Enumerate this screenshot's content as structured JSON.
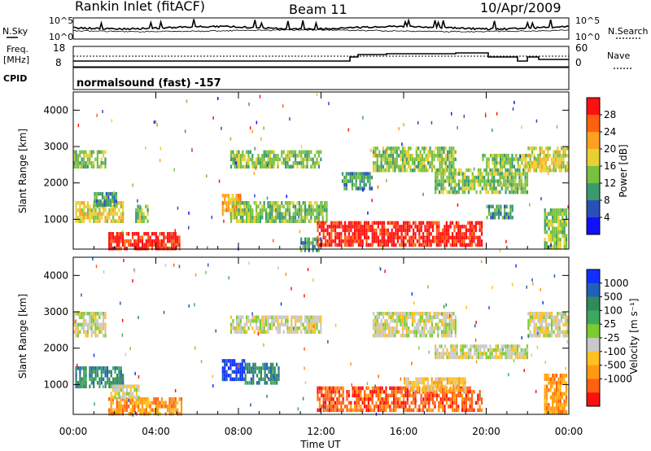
{
  "header": {
    "title": "Rankin Inlet (fitACF)",
    "beam": "Beam 11",
    "date": "10/Apr/2009"
  },
  "noise_panel": {
    "left_label": "N.Sky",
    "right_label": "N.Search",
    "left_ticks": [
      "10^5",
      "10^0"
    ],
    "right_ticks": [
      "10^5",
      "10^0"
    ]
  },
  "freq_panel": {
    "left_label_1": "Freq.",
    "left_label_2": "[MHz]",
    "right_label": "Nave",
    "left_ticks": [
      "18",
      "8"
    ],
    "right_ticks": [
      "60",
      "0"
    ]
  },
  "cpid_panel": {
    "label": "CPID",
    "text": "normalsound (fast) -157"
  },
  "chart_data": [
    {
      "type": "heatmap",
      "name": "power",
      "ylabel": "Slant Range [km]",
      "y_ticks": [
        "1000",
        "2000",
        "3000",
        "4000"
      ],
      "ylim": [
        180,
        4500
      ],
      "xlim": [
        0,
        24
      ],
      "colorbar": {
        "label": "Power [dB]",
        "ticks": [
          "4",
          "8",
          "12",
          "16",
          "20",
          "24",
          "28"
        ],
        "colors": [
          "#1010ff",
          "#2850b8",
          "#3a9a6e",
          "#78c040",
          "#e8d030",
          "#ffa020",
          "#ff6010",
          "#ff1010"
        ]
      },
      "regions": [
        {
          "x0": 0.0,
          "x1": 1.6,
          "y0": 2400,
          "y1": 2900,
          "level": 3
        },
        {
          "x0": 0.1,
          "x1": 2.4,
          "y0": 900,
          "y1": 1500,
          "level": 4
        },
        {
          "x0": 1.0,
          "x1": 2.1,
          "y0": 1400,
          "y1": 1750,
          "level": 2
        },
        {
          "x0": 1.7,
          "x1": 5.2,
          "y0": 220,
          "y1": 650,
          "level": 7
        },
        {
          "x0": 3.0,
          "x1": 3.6,
          "y0": 900,
          "y1": 1400,
          "level": 3
        },
        {
          "x0": 7.2,
          "x1": 8.3,
          "y0": 1100,
          "y1": 1700,
          "level": 5
        },
        {
          "x0": 7.6,
          "x1": 12.3,
          "y0": 900,
          "y1": 1500,
          "level": 3
        },
        {
          "x0": 7.6,
          "x1": 12.0,
          "y0": 2400,
          "y1": 2900,
          "level": 3
        },
        {
          "x0": 11.0,
          "x1": 12.0,
          "y0": 180,
          "y1": 500,
          "level": 2
        },
        {
          "x0": 11.8,
          "x1": 19.8,
          "y0": 280,
          "y1": 950,
          "level": 7
        },
        {
          "x0": 13.0,
          "x1": 14.5,
          "y0": 1800,
          "y1": 2300,
          "level": 2
        },
        {
          "x0": 14.5,
          "x1": 18.5,
          "y0": 2300,
          "y1": 3000,
          "level": 3
        },
        {
          "x0": 17.5,
          "x1": 22.0,
          "y0": 1700,
          "y1": 2400,
          "level": 3
        },
        {
          "x0": 19.8,
          "x1": 22.2,
          "y0": 2400,
          "y1": 2800,
          "level": 3
        },
        {
          "x0": 20.0,
          "x1": 21.3,
          "y0": 1000,
          "y1": 1400,
          "level": 2
        },
        {
          "x0": 22.0,
          "x1": 23.9,
          "y0": 2300,
          "y1": 3000,
          "level": 4
        },
        {
          "x0": 22.8,
          "x1": 23.9,
          "y0": 200,
          "y1": 1300,
          "level": 3
        }
      ]
    },
    {
      "type": "heatmap",
      "name": "velocity",
      "xlabel": "Time UT",
      "ylabel": "Slant Range [km]",
      "x_ticks": [
        "00:00",
        "04:00",
        "08:00",
        "12:00",
        "16:00",
        "20:00",
        "00:00"
      ],
      "y_ticks": [
        "1000",
        "2000",
        "3000",
        "4000"
      ],
      "ylim": [
        180,
        4500
      ],
      "xlim": [
        0,
        24
      ],
      "colorbar": {
        "label": "Velocity [m s⁻¹]",
        "ticks": [
          "1000",
          "500",
          "100",
          "25",
          "-25",
          "-100",
          "-500",
          "-1000"
        ],
        "colors": [
          "#1030ff",
          "#2060b8",
          "#2f8a5c",
          "#3fa860",
          "#7ccc30",
          "#c8c8c8",
          "#ffc020",
          "#ff9a10",
          "#ff6010",
          "#ff1010"
        ]
      },
      "regions": [
        {
          "x0": 0.0,
          "x1": 1.6,
          "y0": 2300,
          "y1": 3000,
          "level": 5
        },
        {
          "x0": 0.1,
          "x1": 2.4,
          "y0": 900,
          "y1": 1500,
          "level": 2
        },
        {
          "x0": 1.7,
          "x1": 5.2,
          "y0": 220,
          "y1": 650,
          "level": 7
        },
        {
          "x0": 1.8,
          "x1": 3.2,
          "y0": 650,
          "y1": 1000,
          "level": 5
        },
        {
          "x0": 7.2,
          "x1": 8.3,
          "y0": 1100,
          "y1": 1700,
          "level": 0
        },
        {
          "x0": 8.3,
          "x1": 10.0,
          "y0": 1000,
          "y1": 1600,
          "level": 2
        },
        {
          "x0": 7.6,
          "x1": 12.0,
          "y0": 2400,
          "y1": 2900,
          "level": 5
        },
        {
          "x0": 11.8,
          "x1": 19.8,
          "y0": 280,
          "y1": 950,
          "level": 8
        },
        {
          "x0": 16.0,
          "x1": 19.0,
          "y0": 800,
          "y1": 1200,
          "level": 6
        },
        {
          "x0": 14.5,
          "x1": 18.5,
          "y0": 2300,
          "y1": 3000,
          "level": 5
        },
        {
          "x0": 17.5,
          "x1": 22.0,
          "y0": 1700,
          "y1": 2100,
          "level": 5
        },
        {
          "x0": 22.0,
          "x1": 23.9,
          "y0": 2300,
          "y1": 3000,
          "level": 5
        },
        {
          "x0": 22.8,
          "x1": 23.9,
          "y0": 200,
          "y1": 1300,
          "level": 7
        }
      ]
    }
  ]
}
